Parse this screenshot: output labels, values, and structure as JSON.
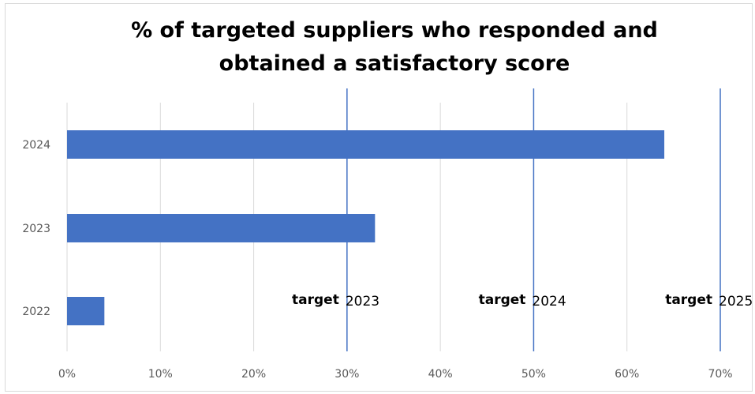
{
  "chart_data": {
    "type": "bar",
    "orientation": "horizontal",
    "title_lines": [
      "% of targeted suppliers who responded and",
      "obtained a satisfactory score"
    ],
    "categories": [
      "2024",
      "2023",
      "2022"
    ],
    "values": [
      64,
      33,
      4
    ],
    "bar_color": "#4472C4",
    "xlim": [
      0,
      70
    ],
    "x_ticks": [
      0,
      10,
      20,
      30,
      40,
      50,
      60,
      70
    ],
    "x_tick_labels": [
      "0%",
      "10%",
      "20%",
      "30%",
      "40%",
      "50%",
      "60%",
      "70%"
    ],
    "grid": "vertical",
    "targets": [
      {
        "label_bold": "target",
        "label_year": "2023",
        "value": 30
      },
      {
        "label_bold": "target",
        "label_year": "2024",
        "value": 50
      },
      {
        "label_bold": "target",
        "label_year": "2025",
        "value": 70
      }
    ],
    "target_line_color": "#4472C4"
  }
}
